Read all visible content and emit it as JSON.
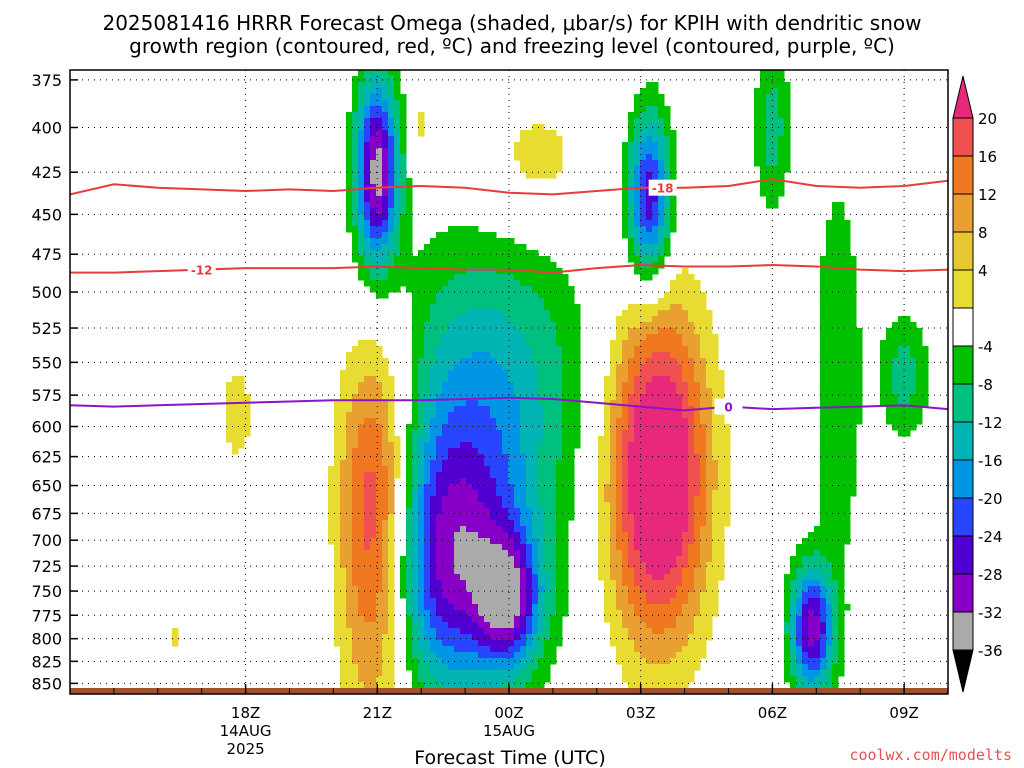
{
  "chart_data": {
    "type": "heatmap",
    "title": "2025081416 HRRR Forecast Omega (shaded, μbar/s) for KPIH with dendritic snow",
    "subtitle": "growth region (contoured, red, ºC) and freezing level (contoured, purple, ºC)",
    "xlabel": "Forecast Time (UTC)",
    "ylabel": "",
    "watermark": "coolwx.com/modelts",
    "x_range_hours_since_14Z_14AUG": [
      0,
      20
    ],
    "y_range_hpa": [
      370,
      860
    ],
    "y_scale": "log-pressure (inverted)",
    "grid": "dotted",
    "y_ticks": [
      375,
      400,
      425,
      450,
      475,
      500,
      525,
      550,
      575,
      600,
      625,
      650,
      675,
      700,
      725,
      750,
      775,
      800,
      825,
      850
    ],
    "x_ticks": [
      {
        "hour": 4,
        "label": "18Z",
        "sub1": "14AUG",
        "sub2": "2025"
      },
      {
        "hour": 7,
        "label": "21Z",
        "sub1": "",
        "sub2": ""
      },
      {
        "hour": 10,
        "label": "00Z",
        "sub1": "15AUG",
        "sub2": ""
      },
      {
        "hour": 13,
        "label": "03Z",
        "sub1": "",
        "sub2": ""
      },
      {
        "hour": 16,
        "label": "06Z",
        "sub1": "",
        "sub2": ""
      },
      {
        "hour": 19,
        "label": "09Z",
        "sub1": "",
        "sub2": ""
      }
    ],
    "colorbar": {
      "labels": [
        20,
        16,
        12,
        8,
        4,
        -4,
        -8,
        -12,
        -16,
        -20,
        -24,
        -28,
        -32,
        -36
      ],
      "colors": [
        "#e8287a",
        "#f05050",
        "#f07820",
        "#e8a030",
        "#e8c830",
        "#e8dc32",
        "#ffffff",
        "#00c000",
        "#00c080",
        "#00b4b4",
        "#0096e6",
        "#2846ff",
        "#5000d0",
        "#8800c8",
        "#aaaaaa",
        "#000000"
      ]
    },
    "contours": [
      {
        "name": "-18",
        "color": "#e83c3c",
        "label_hour": 13.5,
        "points": [
          [
            0,
            438
          ],
          [
            1,
            432
          ],
          [
            2,
            434
          ],
          [
            3,
            435
          ],
          [
            4,
            436
          ],
          [
            5,
            435
          ],
          [
            6,
            436
          ],
          [
            7,
            434
          ],
          [
            8,
            433
          ],
          [
            9,
            434
          ],
          [
            10,
            437
          ],
          [
            11,
            438
          ],
          [
            12,
            436
          ],
          [
            13,
            434
          ],
          [
            14,
            434
          ],
          [
            15,
            433
          ],
          [
            16,
            429
          ],
          [
            17,
            433
          ],
          [
            18,
            434
          ],
          [
            19,
            433
          ],
          [
            20,
            430
          ]
        ]
      },
      {
        "name": "-12",
        "color": "#e83c3c",
        "label_hour": 3,
        "points": [
          [
            0,
            487
          ],
          [
            1,
            487
          ],
          [
            2,
            486
          ],
          [
            3,
            485
          ],
          [
            4,
            484
          ],
          [
            5,
            484
          ],
          [
            6,
            484
          ],
          [
            7,
            483
          ],
          [
            8,
            484
          ],
          [
            9,
            485
          ],
          [
            10,
            485
          ],
          [
            11,
            487
          ],
          [
            12,
            484
          ],
          [
            13,
            482
          ],
          [
            14,
            483
          ],
          [
            15,
            483
          ],
          [
            16,
            482
          ],
          [
            17,
            483
          ],
          [
            18,
            485
          ],
          [
            19,
            486
          ],
          [
            20,
            485
          ]
        ]
      },
      {
        "name": "0",
        "color": "#8c14c8",
        "label_hour": 15,
        "points": [
          [
            0,
            583
          ],
          [
            1,
            584
          ],
          [
            2,
            583
          ],
          [
            3,
            582
          ],
          [
            4,
            581
          ],
          [
            5,
            580
          ],
          [
            6,
            579
          ],
          [
            7,
            579
          ],
          [
            8,
            579
          ],
          [
            9,
            578
          ],
          [
            10,
            577
          ],
          [
            11,
            578
          ],
          [
            12,
            581
          ],
          [
            13,
            584
          ],
          [
            14,
            587
          ],
          [
            15,
            584
          ],
          [
            16,
            586
          ],
          [
            17,
            585
          ],
          [
            18,
            584
          ],
          [
            19,
            583
          ],
          [
            20,
            586
          ]
        ]
      }
    ],
    "omega_centers": [
      {
        "name": "ascent-21z-upper",
        "x": 7.0,
        "p": 425,
        "sx": 0.35,
        "sy": 0.09,
        "v": -34
      },
      {
        "name": "ascent-00z-mid",
        "x": 8.6,
        "p": 720,
        "sx": 1.3,
        "sy": 0.13,
        "v": -30
      },
      {
        "name": "ascent-01z-mid",
        "x": 10.0,
        "p": 760,
        "sx": 0.5,
        "sy": 0.06,
        "v": -22
      },
      {
        "name": "ascent-04z-upper",
        "x": 13.2,
        "p": 440,
        "sx": 0.35,
        "sy": 0.08,
        "v": -28
      },
      {
        "name": "ascent-07z-low",
        "x": 16.9,
        "p": 790,
        "sx": 0.35,
        "sy": 0.06,
        "v": -30
      },
      {
        "name": "ascent-upper-band",
        "x": 9.5,
        "p": 560,
        "sx": 1.6,
        "sy": 0.14,
        "v": -14
      },
      {
        "name": "ascent-08z-mid",
        "x": 17.5,
        "p": 560,
        "sx": 0.4,
        "sy": 0.2,
        "v": -8
      },
      {
        "name": "ascent-09z-mid",
        "x": 19.0,
        "p": 560,
        "sx": 0.4,
        "sy": 0.06,
        "v": -10
      },
      {
        "name": "ascent-05z-upper",
        "x": 16.0,
        "p": 400,
        "sx": 0.3,
        "sy": 0.08,
        "v": -10
      },
      {
        "name": "descent-21z-low",
        "x": 7.0,
        "p": 690,
        "sx": 0.65,
        "sy": 0.17,
        "v": 30
      },
      {
        "name": "descent-04z-mid",
        "x": 13.4,
        "p": 640,
        "sx": 0.8,
        "sy": 0.16,
        "v": 30
      },
      {
        "name": "descent-00z-upper",
        "x": 10.6,
        "p": 420,
        "sx": 1.0,
        "sy": 0.07,
        "v": 6
      },
      {
        "name": "descent-18z-mid",
        "x": 3.8,
        "p": 590,
        "sx": 0.3,
        "sy": 0.06,
        "v": 6
      },
      {
        "name": "descent-17z-low",
        "x": 2.4,
        "p": 800,
        "sx": 0.15,
        "sy": 0.02,
        "v": 5
      },
      {
        "name": "descent-22z-upper",
        "x": 8.0,
        "p": 400,
        "sx": 0.2,
        "sy": 0.05,
        "v": 5
      }
    ]
  }
}
